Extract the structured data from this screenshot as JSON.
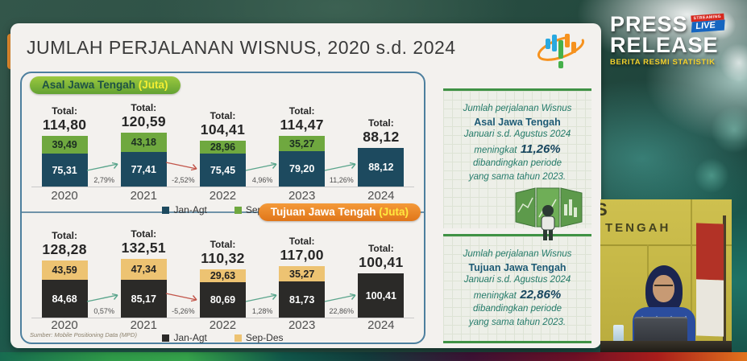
{
  "page": {
    "title": "JUMLAH  PERJALANAN WISNUS, 2020 s.d. 2024"
  },
  "press_release": {
    "line1": "PRESS",
    "line2": "RELEASE",
    "subtitle": "BERITA RESMI STATISTIK",
    "badge_top": "STREAMING",
    "badge_label": "LIVE",
    "badge_red": "#d6281e",
    "badge_blue": "#1565c0"
  },
  "chart_data": [
    {
      "type": "bar",
      "stacked": true,
      "title": "Asal Jawa Tengah (Juta)",
      "badge": {
        "label": "Asal Jawa Tengah",
        "unit": "(Juta)"
      },
      "unit": "Juta",
      "categories": [
        "2020",
        "2021",
        "2022",
        "2023",
        "2024"
      ],
      "series": [
        {
          "name": "Jan-Agt",
          "color": "#1d4a5f",
          "label_color": "#ffffff",
          "values": [
            75.31,
            77.41,
            75.45,
            79.2,
            88.12
          ],
          "labels": [
            "75,31",
            "77,41",
            "75,45",
            "79,20",
            "88,12"
          ]
        },
        {
          "name": "Sep-Des",
          "color": "#6fa83f",
          "label_color": "#1c2e22",
          "values": [
            39.49,
            43.18,
            28.96,
            35.27,
            null
          ],
          "labels": [
            "39,49",
            "43,18",
            "28,96",
            "35,27",
            null
          ]
        }
      ],
      "total_prefix": "Total:",
      "totals": [
        "114,80",
        "120,59",
        "104,41",
        "114,47",
        "88,12"
      ],
      "growth": [
        {
          "label": "2,79%",
          "dir": "up"
        },
        {
          "label": "-2,52%",
          "dir": "down"
        },
        {
          "label": "4,96%",
          "dir": "up"
        },
        {
          "label": "11,26%",
          "dir": "up"
        }
      ],
      "legend": [
        "Jan-Agt",
        "Sep-Des"
      ],
      "legend_position": "bottom"
    },
    {
      "type": "bar",
      "stacked": true,
      "title": "Tujuan Jawa Tengah (Juta)",
      "badge": {
        "label": "Tujuan Jawa Tengah",
        "unit": "(Juta)"
      },
      "unit": "Juta",
      "categories": [
        "2020",
        "2021",
        "2022",
        "2023",
        "2024"
      ],
      "series": [
        {
          "name": "Jan-Agt",
          "color": "#2b2a28",
          "label_color": "#ffffff",
          "values": [
            84.68,
            85.17,
            80.69,
            81.73,
            100.41
          ],
          "labels": [
            "84,68",
            "85,17",
            "80,69",
            "81,73",
            "100,41"
          ]
        },
        {
          "name": "Sep-Des",
          "color": "#edc372",
          "label_color": "#222222",
          "values": [
            43.59,
            47.34,
            29.63,
            35.27,
            null
          ],
          "labels": [
            "43,59",
            "47,34",
            "29,63",
            "35,27",
            null
          ]
        }
      ],
      "total_prefix": "Total:",
      "totals": [
        "128,28",
        "132,51",
        "110,32",
        "117,00",
        "100,41"
      ],
      "growth": [
        {
          "label": "0,57%",
          "dir": "up"
        },
        {
          "label": "-5,26%",
          "dir": "down"
        },
        {
          "label": "1,28%",
          "dir": "up"
        },
        {
          "label": "22,86%",
          "dir": "up"
        }
      ],
      "legend": [
        "Jan-Agt",
        "Sep-Des"
      ],
      "legend_position": "bottom",
      "source": "Sumber: Mobile Positioning Data (MPD)"
    }
  ],
  "insight_panels": [
    {
      "intro": "Jumlah perjalanan Wisnus",
      "subject": "Asal Jawa Tengah",
      "period": "Januari s.d. Agustus 2024",
      "verb": "meningkat",
      "pct": "11,26%",
      "tail_1": "dibandingkan periode",
      "tail_2": "yang sama tahun 2023."
    },
    {
      "intro": "Jumlah perjalanan Wisnus",
      "subject": "Tujuan Jawa Tengah",
      "period": "Januari s.d. Agustus 2024",
      "verb": "meningkat",
      "pct": "22,86%",
      "tail_1": "dibandingkan periode",
      "tail_2": "yang sama tahun 2023."
    }
  ],
  "video_inset": {
    "wall_text_fragment": "S",
    "wall_text": "TENGAH"
  },
  "colors": {
    "arrow_up": "#5aa58c",
    "arrow_down": "#c2554a",
    "panel_border": "#4d7f9e",
    "card_bg": "#f3f1ee",
    "pill_green": "#63a233",
    "pill_orange": "#e0761a",
    "insight_border": "#3f9245"
  }
}
